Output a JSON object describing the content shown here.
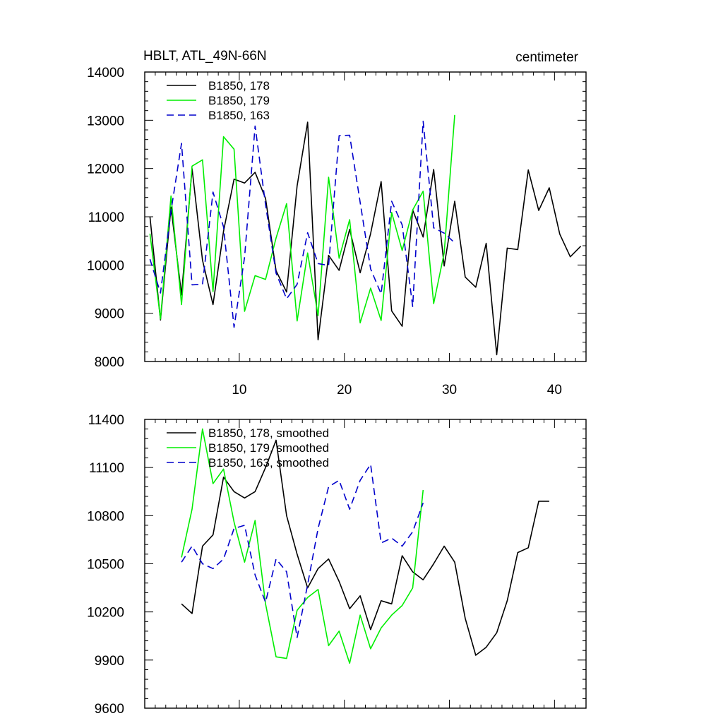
{
  "chart_data": [
    {
      "type": "line",
      "title": "HBLT, ATL_49N-66N",
      "units": "centimeter",
      "xlim": [
        1,
        43
      ],
      "ylim": [
        8000,
        14000
      ],
      "xticks": [
        10,
        20,
        30,
        40
      ],
      "yticks": [
        8000,
        9000,
        10000,
        11000,
        12000,
        13000,
        14000
      ],
      "show_x_labels": true,
      "legend_position": "top-left",
      "series": [
        {
          "name": "B1850, 178",
          "color": "#000000",
          "dash": "solid",
          "x": [
            1.5,
            2.5,
            3.5,
            4.5,
            5.5,
            6.5,
            7.5,
            8.5,
            9.5,
            10.5,
            11.5,
            12.5,
            13.5,
            14.5,
            15.5,
            16.5,
            17.5,
            18.5,
            19.5,
            20.5,
            21.5,
            22.5,
            23.5,
            24.5,
            25.5,
            26.5,
            27.5,
            28.5,
            29.5,
            30.5,
            31.5,
            32.5,
            33.5,
            34.5,
            35.5,
            36.5,
            37.5,
            38.5,
            39.5,
            40.5,
            41.5,
            42.5
          ],
          "values": [
            11000,
            8860,
            11200,
            9380,
            12000,
            10100,
            9180,
            10700,
            11780,
            11700,
            11920,
            11380,
            9880,
            9440,
            11640,
            12960,
            8450,
            10200,
            9890,
            10740,
            9840,
            10650,
            11730,
            9050,
            8730,
            11140,
            10580,
            11980,
            9980,
            11320,
            9750,
            9540,
            10450,
            8140,
            10350,
            10320,
            11970,
            11130,
            11600,
            10640,
            10170,
            10390
          ]
        },
        {
          "name": "B1850, 179",
          "color": "#00ee00",
          "dash": "solid",
          "x": [
            1.5,
            2.5,
            3.5,
            4.5,
            5.5,
            6.5,
            7.5,
            8.5,
            9.5,
            10.5,
            11.5,
            12.5,
            13.5,
            14.5,
            15.5,
            16.5,
            17.5,
            18.5,
            19.5,
            20.5,
            21.5,
            22.5,
            23.5,
            24.5,
            25.5,
            26.5,
            27.5,
            28.5,
            29.5,
            30.5
          ],
          "values": [
            10650,
            8880,
            11430,
            9180,
            12050,
            12180,
            9450,
            12660,
            12400,
            9040,
            9780,
            9700,
            10560,
            11270,
            8840,
            10250,
            8950,
            11820,
            10140,
            10940,
            8800,
            9520,
            8850,
            11090,
            10300,
            11140,
            11530,
            9200,
            10250,
            13110
          ]
        },
        {
          "name": "B1850, 163",
          "color": "#0000cc",
          "dash": "dashed",
          "x": [
            1.5,
            2.5,
            3.5,
            4.5,
            5.5,
            6.5,
            7.5,
            8.5,
            9.5,
            10.5,
            11.5,
            12.5,
            13.5,
            14.5,
            15.5,
            16.5,
            17.5,
            18.5,
            19.5,
            20.5,
            21.5,
            22.5,
            23.5,
            24.5,
            25.5,
            26.5,
            27.5,
            28.5,
            29.5,
            30.5
          ],
          "values": [
            10120,
            9420,
            11120,
            12520,
            9590,
            9600,
            11510,
            10790,
            8710,
            10160,
            12880,
            11250,
            9830,
            9300,
            9600,
            10670,
            10030,
            9990,
            12680,
            12690,
            11300,
            9920,
            9400,
            11320,
            10830,
            9140,
            12980,
            10770,
            10660,
            10460
          ]
        }
      ]
    },
    {
      "type": "line",
      "title": "",
      "units": "",
      "xlim": [
        1,
        43
      ],
      "ylim": [
        9600,
        11400
      ],
      "xticks": [
        10,
        20,
        30,
        40
      ],
      "yticks": [
        9600,
        9900,
        10200,
        10500,
        10800,
        11100,
        11400
      ],
      "show_x_labels": false,
      "legend_position": "top-left",
      "series": [
        {
          "name": "B1850, 178, smoothed",
          "color": "#000000",
          "dash": "solid",
          "x": [
            4.5,
            5.5,
            6.5,
            7.5,
            8.5,
            9.5,
            10.5,
            11.5,
            12.5,
            13.5,
            14.5,
            15.5,
            16.5,
            17.5,
            18.5,
            19.5,
            20.5,
            21.5,
            22.5,
            23.5,
            24.5,
            25.5,
            26.5,
            27.5,
            28.5,
            29.5,
            30.5,
            31.5,
            32.5,
            33.5,
            34.5,
            35.5,
            36.5,
            37.5,
            38.5,
            39.5
          ],
          "values": [
            10250,
            10190,
            10610,
            10680,
            11040,
            10950,
            10910,
            10950,
            11100,
            11270,
            10800,
            10560,
            10350,
            10470,
            10530,
            10390,
            10220,
            10300,
            10090,
            10270,
            10250,
            10550,
            10450,
            10400,
            10500,
            10610,
            10510,
            10160,
            9930,
            9980,
            10070,
            10270,
            10570,
            10600,
            10890,
            10890
          ]
        },
        {
          "name": "B1850, 179, smoothed",
          "color": "#00ee00",
          "dash": "solid",
          "x": [
            4.5,
            5.5,
            6.5,
            7.5,
            8.5,
            9.5,
            10.5,
            11.5,
            12.5,
            13.5,
            14.5,
            15.5,
            16.5,
            17.5,
            18.5,
            19.5,
            20.5,
            21.5,
            22.5,
            23.5,
            24.5,
            25.5,
            26.5,
            27.5
          ],
          "values": [
            10540,
            10840,
            11340,
            11000,
            11090,
            10760,
            10510,
            10770,
            10250,
            9920,
            9910,
            10210,
            10290,
            10340,
            9990,
            10080,
            9880,
            10180,
            9970,
            10100,
            10180,
            10240,
            10350,
            10960
          ]
        },
        {
          "name": "B1850, 163, smoothed",
          "color": "#0000cc",
          "dash": "dashed",
          "x": [
            4.5,
            5.5,
            6.5,
            7.5,
            8.5,
            9.5,
            10.5,
            11.5,
            12.5,
            13.5,
            14.5,
            15.5,
            16.5,
            17.5,
            18.5,
            19.5,
            20.5,
            21.5,
            22.5,
            23.5,
            24.5,
            25.5,
            26.5,
            27.5
          ],
          "values": [
            10510,
            10610,
            10500,
            10470,
            10530,
            10720,
            10740,
            10430,
            10260,
            10530,
            10450,
            10040,
            10370,
            10720,
            10980,
            11020,
            10840,
            11020,
            11120,
            10630,
            10660,
            10610,
            10700,
            10880
          ]
        }
      ]
    }
  ]
}
